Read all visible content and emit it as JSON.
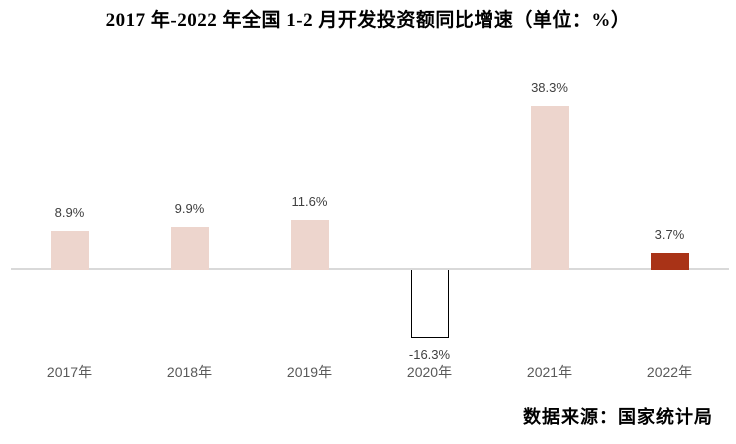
{
  "title": "2017 年-2022 年全国 1-2 月开发投资额同比增速（单位：%）",
  "source": "数据来源：国家统计局",
  "chart_data": {
    "type": "bar",
    "title": "2017 年-2022 年全国 1-2 月开发投资额同比增速（单位：%）",
    "categories": [
      "2017年",
      "2018年",
      "2019年",
      "2020年",
      "2021年",
      "2022年"
    ],
    "values": [
      8.9,
      9.9,
      11.6,
      -16.3,
      38.3,
      3.7
    ],
    "value_labels": [
      "8.9%",
      "9.9%",
      "11.6%",
      "-16.3%",
      "38.3%",
      "3.7%"
    ],
    "xlabel": "",
    "ylabel": "",
    "unit": "%",
    "ylim": [
      -20,
      45
    ],
    "grid": false,
    "legend": null,
    "bar_colors": [
      "#edd5cd",
      "#edd5cd",
      "#edd5cd",
      "#ffffff",
      "#edd5cd",
      "#a93317"
    ],
    "negative_bar_style": "white fill with black outline, drawn below baseline",
    "source_note": "数据来源：国家统计局"
  },
  "colors": {
    "bar_pink": "#edd5cd",
    "bar_dark_red": "#a93317",
    "negative_bar_fill": "#ffffff",
    "negative_bar_border": "#000000",
    "axis_line": "#d9d9d9",
    "value_label_text": "#404040",
    "category_label_text": "#595959",
    "title_text": "#000000",
    "source_text": "#000000",
    "background": "#ffffff"
  }
}
